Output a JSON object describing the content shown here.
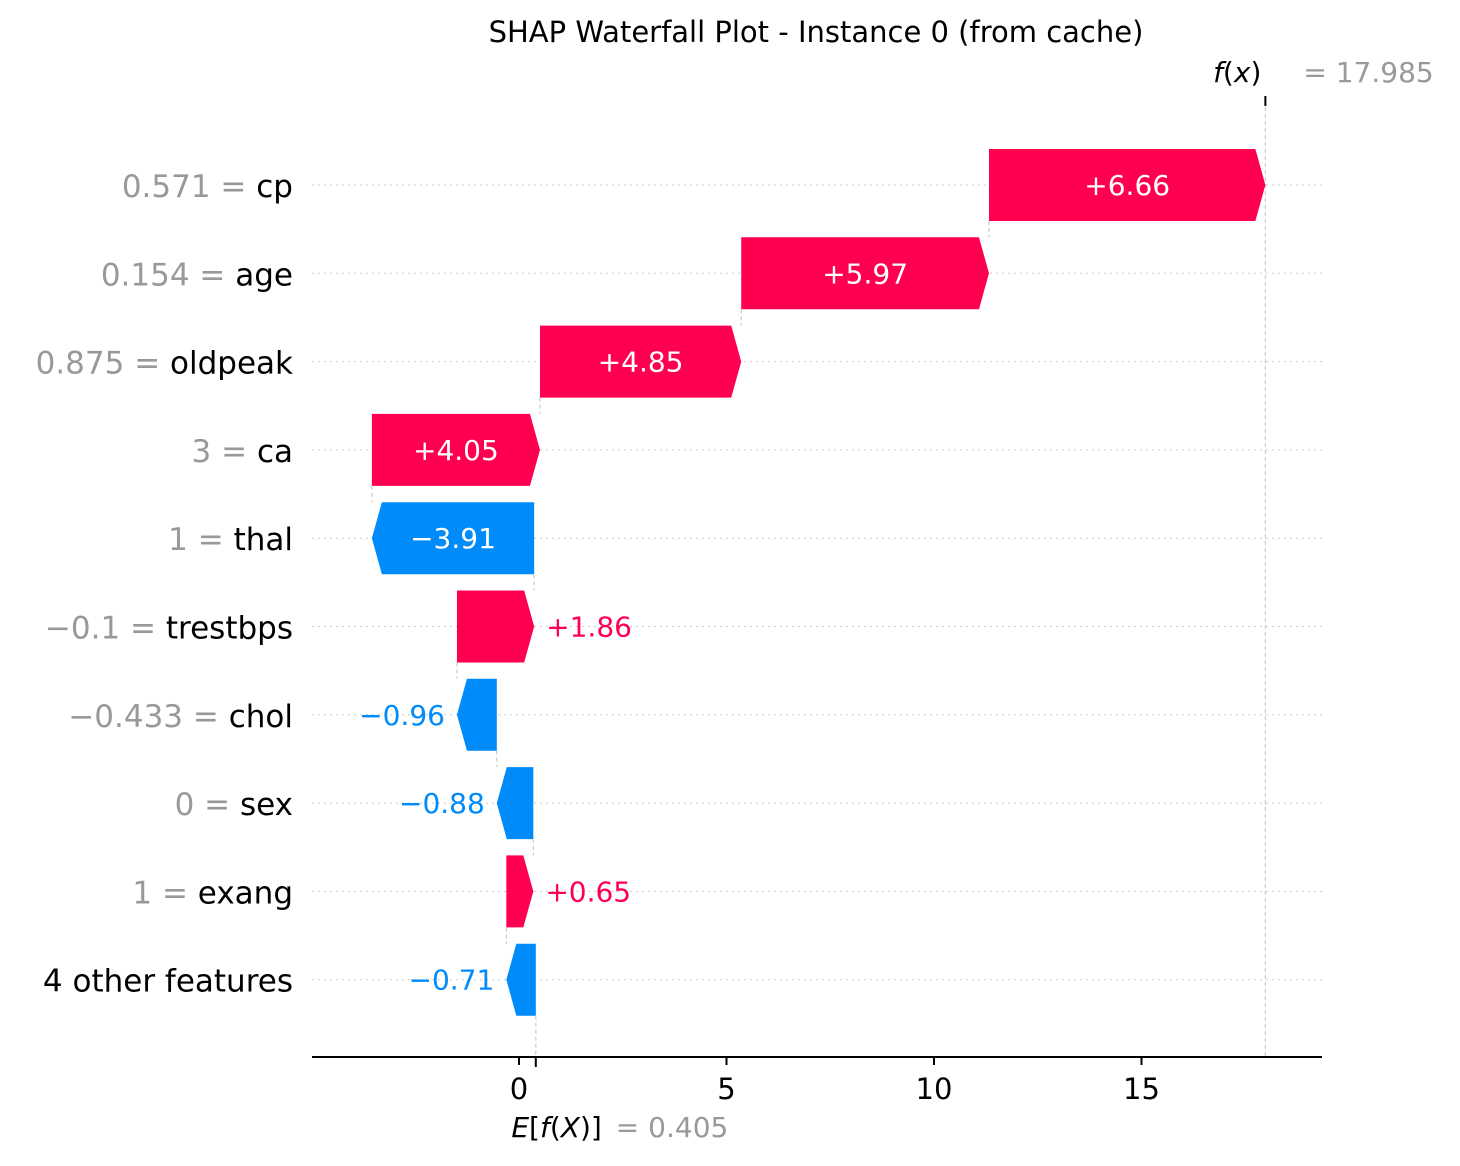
{
  "chart_data": {
    "type": "waterfall",
    "title": "SHAP Waterfall Plot - Instance 0 (from cache)",
    "base_value": 0.405,
    "base_value_text": "0.405",
    "final_value": 17.985,
    "final_value_text": "17.985",
    "base_label": "E[f(X)]",
    "final_label": "f(x)",
    "xlim": [
      -5,
      19.4
    ],
    "xticks": [
      0,
      5,
      10,
      15
    ],
    "xtick_labels": [
      "0",
      "5",
      "10",
      "15"
    ],
    "grid": "dotted horizontal per row",
    "features": [
      {
        "value_text": "0.571",
        "name": "cp",
        "start": 11.325,
        "end": 17.985,
        "contribution": 6.66,
        "label": "+6.66"
      },
      {
        "value_text": "0.154",
        "name": "age",
        "start": 5.355,
        "end": 11.325,
        "contribution": 5.97,
        "label": "+5.97"
      },
      {
        "value_text": "0.875",
        "name": "oldpeak",
        "start": 0.505,
        "end": 5.355,
        "contribution": 4.85,
        "label": "+4.85"
      },
      {
        "value_text": "3",
        "name": "ca",
        "start": -3.545,
        "end": 0.505,
        "contribution": 4.05,
        "label": "+4.05"
      },
      {
        "value_text": "1",
        "name": "thal",
        "start": 0.365,
        "end": -3.545,
        "contribution": -3.91,
        "label": "−3.91"
      },
      {
        "value_text": "−0.1",
        "name": "trestbps",
        "start": -1.495,
        "end": 0.365,
        "contribution": 1.86,
        "label": "+1.86"
      },
      {
        "value_text": "−0.433",
        "name": "chol",
        "start": -0.535,
        "end": -1.495,
        "contribution": -0.96,
        "label": "−0.96"
      },
      {
        "value_text": "0",
        "name": "sex",
        "start": 0.345,
        "end": -0.535,
        "contribution": -0.88,
        "label": "−0.88"
      },
      {
        "value_text": "1",
        "name": "exang",
        "start": -0.305,
        "end": 0.345,
        "contribution": 0.65,
        "label": "+0.65"
      },
      {
        "value_text": "",
        "name": "4 other features",
        "start": 0.405,
        "end": -0.305,
        "contribution": -0.71,
        "label": "−0.71"
      }
    ],
    "colors": {
      "positive": "#ff0051",
      "negative": "#008bfb",
      "value_gray": "#999999",
      "axis": "#000000",
      "grid": "#cccccc"
    }
  }
}
